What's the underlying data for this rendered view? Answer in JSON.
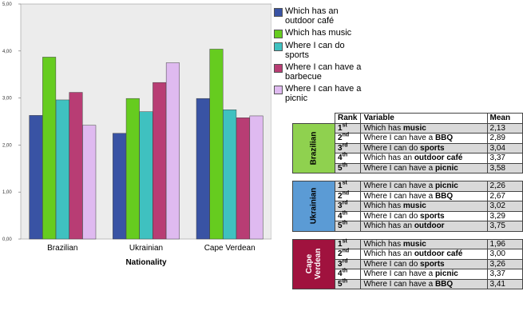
{
  "chart_data": {
    "type": "bar",
    "categories": [
      "Brazilian",
      "Ukrainian",
      "Cape Verdean"
    ],
    "series": [
      {
        "name": "Which has an outdoor café",
        "color": "#3953a4",
        "values": [
          2.63,
          2.25,
          2.99
        ]
      },
      {
        "name": "Which has music",
        "color": "#66cc1f",
        "values": [
          3.87,
          2.99,
          4.04
        ]
      },
      {
        "name": "Where I can do sports",
        "color": "#3fc1c0",
        "values": [
          2.96,
          2.71,
          2.75
        ]
      },
      {
        "name": "Where I can have a barbecue",
        "color": "#b83d74",
        "values": [
          3.12,
          3.33,
          2.58
        ]
      },
      {
        "name": "Where I can have a picnic",
        "color": "#dfbaf0",
        "values": [
          2.42,
          3.75,
          2.62
        ]
      }
    ],
    "xlabel": "Nationality",
    "ylabel": "",
    "ylim": [
      0,
      5
    ],
    "ytick_labels": [
      "0,00",
      "1,00",
      "2,00",
      "3,00",
      "4,00",
      "5,00"
    ],
    "grid": false,
    "legend_position": "right",
    "plot_background": "#ececec"
  },
  "table": {
    "headers": {
      "rank": "Rank",
      "variable": "Variable",
      "mean": "Mean"
    },
    "groups": [
      {
        "nationality": "Brazilian",
        "color": "#8fd14f",
        "rows": [
          {
            "rank": "1",
            "sup": "st",
            "pre": "Which has ",
            "bold": "music",
            "mean": "2,13"
          },
          {
            "rank": "2",
            "sup": "nd",
            "pre": "Where I can have a ",
            "bold": "BBQ",
            "mean": "2,89"
          },
          {
            "rank": "3",
            "sup": "rd",
            "pre": "Where I can do ",
            "bold": "sports",
            "mean": "3,04"
          },
          {
            "rank": "4",
            "sup": "th",
            "pre": "Which has an ",
            "bold": "outdoor café",
            "mean": "3,37"
          },
          {
            "rank": "5",
            "sup": "th",
            "pre": "Where I can have a ",
            "bold": "picnic",
            "mean": "3,58"
          }
        ]
      },
      {
        "nationality": "Ukrainian",
        "color": "#5b9bd5",
        "rows": [
          {
            "rank": "1",
            "sup": "st",
            "pre": "Where I can have a ",
            "bold": "picnic",
            "mean": "2,26"
          },
          {
            "rank": "2",
            "sup": "nd",
            "pre": "Where I can have a ",
            "bold": "BBQ",
            "mean": "2,67"
          },
          {
            "rank": "3",
            "sup": "rd",
            "pre": "Which has ",
            "bold": "music",
            "mean": "3,02"
          },
          {
            "rank": "4",
            "sup": "th",
            "pre": "Where I can do ",
            "bold": "sports",
            "mean": "3,29"
          },
          {
            "rank": "5",
            "sup": "th",
            "pre": "Which has an ",
            "bold": "outdoor",
            "mean": "3,75"
          }
        ]
      },
      {
        "nationality": "Cape Verdean",
        "color": "#a0123e",
        "rows": [
          {
            "rank": "1",
            "sup": "st",
            "pre": "Which has ",
            "bold": "music",
            "mean": "1,96"
          },
          {
            "rank": "2",
            "sup": "nd",
            "pre": "Which has an ",
            "bold": "outdoor café",
            "mean": "3,00"
          },
          {
            "rank": "3",
            "sup": "rd",
            "pre": "Where I can do ",
            "bold": "sports",
            "mean": "3,26"
          },
          {
            "rank": "4",
            "sup": "th",
            "pre": "Where I can have a ",
            "bold": "picnic",
            "mean": "3,37"
          },
          {
            "rank": "5",
            "sup": "th",
            "pre": "Where I can have a ",
            "bold": "BBQ",
            "mean": "3,41"
          }
        ]
      }
    ]
  }
}
